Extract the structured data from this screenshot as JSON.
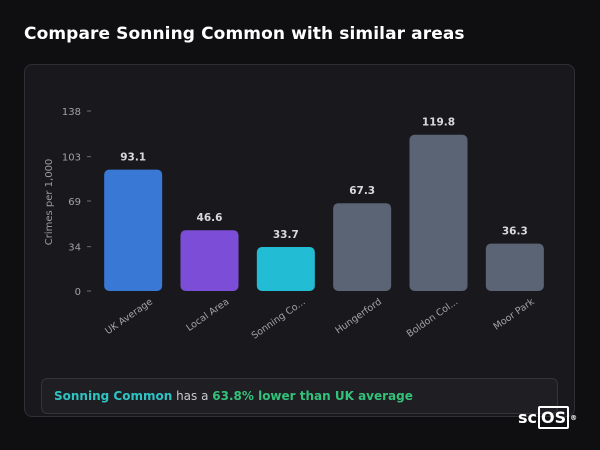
{
  "page": {
    "title": "Compare Sonning Common with similar areas"
  },
  "chart_data": {
    "type": "bar",
    "title": "",
    "xlabel": "",
    "ylabel": "Crimes per 1,000",
    "ylim": [
      0,
      138
    ],
    "yticks": [
      0,
      34,
      69,
      103,
      138
    ],
    "grid": false,
    "categories": [
      "UK Average",
      "Local Area",
      "Sonning Co...",
      "Hungerford",
      "Boldon Col...",
      "Moor Park"
    ],
    "values": [
      93.1,
      46.6,
      33.7,
      67.3,
      119.8,
      36.3
    ],
    "value_labels": [
      "93.1",
      "46.6",
      "33.7",
      "67.3",
      "119.8",
      "36.3"
    ],
    "colors": [
      "#3a78d6",
      "#7c4ed8",
      "#22bcd4",
      "#5b6475",
      "#5b6475",
      "#5b6475"
    ]
  },
  "summary": {
    "area_name": "Sonning Common",
    "connector": " has a ",
    "comparison": "63.8% lower than UK average"
  },
  "colors": {
    "background": "#0f0f12",
    "card": "#19191d",
    "highlight_name": "#2ec4c4",
    "highlight_pct": "#33c27a"
  },
  "logo": {
    "prefix": "sc",
    "boxed": "OS",
    "mark": "®"
  }
}
